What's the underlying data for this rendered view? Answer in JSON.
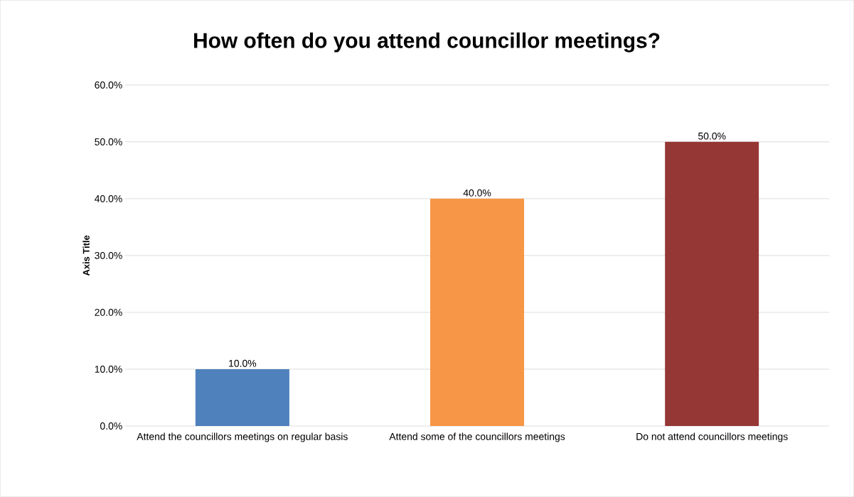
{
  "chart_data": {
    "type": "bar",
    "title": "How often do you attend councillor meetings?",
    "ylabel": "Axis Title",
    "categories": [
      "Attend the councillors meetings on regular basis",
      "Attend some of the councillors meetings",
      "Do not attend councillors meetings"
    ],
    "values": [
      10,
      40,
      50
    ],
    "colors": [
      "#4f81bd",
      "#f79646",
      "#953735"
    ],
    "value_labels": [
      "10.0%",
      "40.0%",
      "50.0%"
    ],
    "ylim": [
      0,
      60
    ],
    "yticks": [
      {
        "value": 0,
        "label": "0.0%"
      },
      {
        "value": 10,
        "label": "10.0%"
      },
      {
        "value": 20,
        "label": "20.0%"
      },
      {
        "value": 30,
        "label": "30.0%"
      },
      {
        "value": 40,
        "label": "40.0%"
      },
      {
        "value": 50,
        "label": "50.0%"
      },
      {
        "value": 60,
        "label": "60.0%"
      }
    ],
    "grid": "y"
  }
}
